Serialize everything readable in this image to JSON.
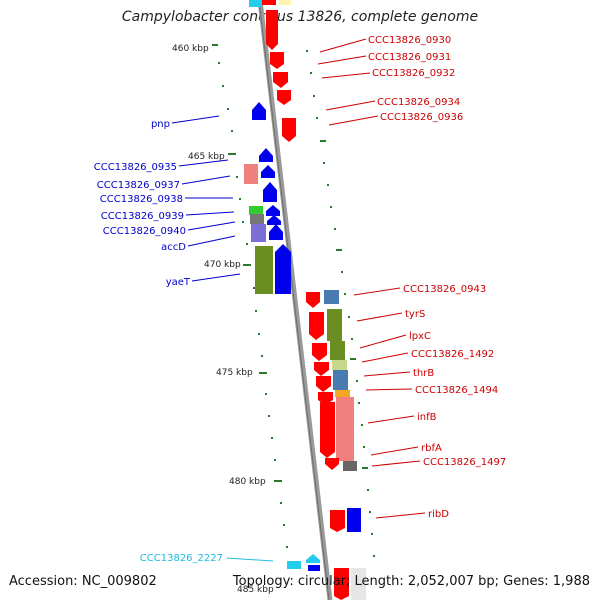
{
  "title": "Campylobacter concisus 13826, complete genome",
  "footer": {
    "accession": "Accession: NC_009802",
    "stats": "Topology: circular; Length: 2,052,007 bp; Genes: 1,988"
  },
  "colors": {
    "forward_label": "#cc0000",
    "reverse_label": "#0000cc",
    "rna_label": "#22bbdd",
    "backbone": "#999999",
    "tick": "#2a7a2a"
  },
  "ruler_labels": [
    "460 kbp",
    "465 kbp",
    "470 kbp",
    "475 kbp",
    "480 kbp",
    "485 kbp"
  ],
  "gene_labels_right": [
    "CCC13826_0930",
    "CCC13826_0931",
    "CCC13826_0932",
    "CCC13826_0934",
    "CCC13826_0936",
    "CCC13826_0943",
    "tyrS",
    "lpxC",
    "CCC13826_1492",
    "thrB",
    "CCC13826_1494",
    "infB",
    "rbfA",
    "CCC13826_1497",
    "ribD"
  ],
  "gene_labels_left": [
    "pnp",
    "CCC13826_0935",
    "CCC13826_0937",
    "CCC13826_0938",
    "CCC13826_0939",
    "CCC13826_0940",
    "accD",
    "yaeT",
    "CCC13826_2227"
  ]
}
